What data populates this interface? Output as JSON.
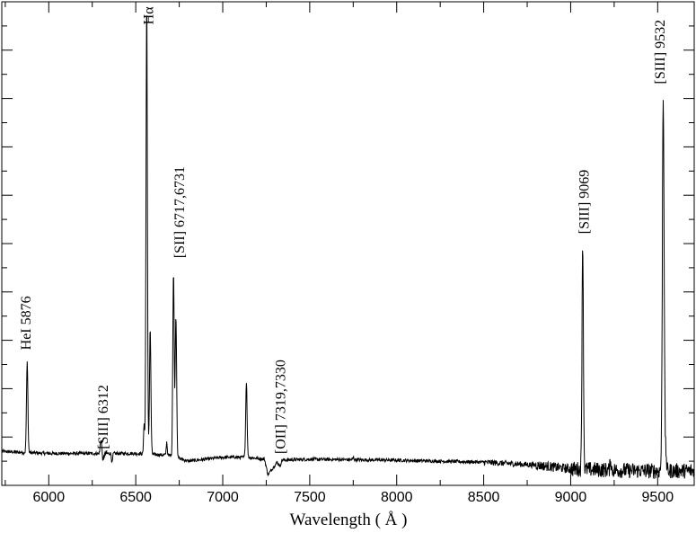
{
  "chart_data": {
    "type": "line",
    "title": "",
    "xlabel": "Wavelength  ( Å )",
    "ylabel": "",
    "xlim": [
      5730,
      9710
    ],
    "ylim": [
      0,
      100
    ],
    "x_ticks": [
      6000,
      6500,
      7000,
      7500,
      8000,
      8500,
      9000,
      9500
    ],
    "x_tick_labels": [
      "6000",
      "6500",
      "7000",
      "7500",
      "8000",
      "8500",
      "9000",
      "9500"
    ],
    "y_major_ticks": [
      10,
      20,
      30,
      40,
      50,
      60,
      70,
      80,
      90
    ],
    "grid": false,
    "legend": "none",
    "continuum": [
      [
        5730,
        7.0
      ],
      [
        6000,
        6.6
      ],
      [
        6500,
        6.6
      ],
      [
        6700,
        6.2
      ],
      [
        6800,
        5.0
      ],
      [
        6900,
        5.4
      ],
      [
        7000,
        5.8
      ],
      [
        7150,
        5.8
      ],
      [
        7240,
        5.4
      ],
      [
        7260,
        2.2
      ],
      [
        7320,
        5.2
      ],
      [
        7500,
        5.4
      ],
      [
        8000,
        5.2
      ],
      [
        8500,
        4.8
      ],
      [
        8800,
        4.2
      ],
      [
        9000,
        3.4
      ],
      [
        9400,
        3.0
      ],
      [
        9710,
        3.0
      ]
    ],
    "lines": [
      {
        "x": 5876,
        "peak": 25.5,
        "width": 4
      },
      {
        "x": 6300,
        "peak": 9.5,
        "width": 4
      },
      {
        "x": 6312,
        "peak": 5.0,
        "width": 3
      },
      {
        "x": 6364,
        "peak": 4.6,
        "width": 3
      },
      {
        "x": 6548,
        "peak": 13.0,
        "width": 3
      },
      {
        "x": 6563,
        "peak": 100,
        "width": 4
      },
      {
        "x": 6583,
        "peak": 32.5,
        "width": 4
      },
      {
        "x": 6678,
        "peak": 9.0,
        "width": 3
      },
      {
        "x": 6717,
        "peak": 44.0,
        "width": 4
      },
      {
        "x": 6731,
        "peak": 35.0,
        "width": 4
      },
      {
        "x": 7065,
        "peak": 6.0,
        "width": 3
      },
      {
        "x": 7136,
        "peak": 21.5,
        "width": 4
      },
      {
        "x": 7320,
        "peak": 4.5,
        "width": 4
      },
      {
        "x": 7330,
        "peak": 4.0,
        "width": 4
      },
      {
        "x": 7751,
        "peak": 5.8,
        "width": 3
      },
      {
        "x": 9069,
        "peak": 50.5,
        "width": 4
      },
      {
        "x": 9229,
        "peak": 5.5,
        "width": 3
      },
      {
        "x": 9532,
        "peak": 80.5,
        "width": 5
      },
      {
        "x": 9546,
        "peak": 7.0,
        "width": 4
      }
    ],
    "annotations": [
      {
        "text": "HeI 5876",
        "x": 5876,
        "y": 28
      },
      {
        "text": "[SIII] 6312",
        "x": 6320,
        "y": 7.5
      },
      {
        "text": "Hα",
        "x": 6580,
        "y": 99
      },
      {
        "text": "[SII] 6717,6731",
        "x": 6760,
        "y": 47
      },
      {
        "text": "[OII] 7319,7330",
        "x": 7340,
        "y": 6.5
      },
      {
        "text": "[SIII] 9069",
        "x": 9085,
        "y": 52
      },
      {
        "text": "[SIII] 9532",
        "x": 9520,
        "y": 83
      }
    ]
  }
}
